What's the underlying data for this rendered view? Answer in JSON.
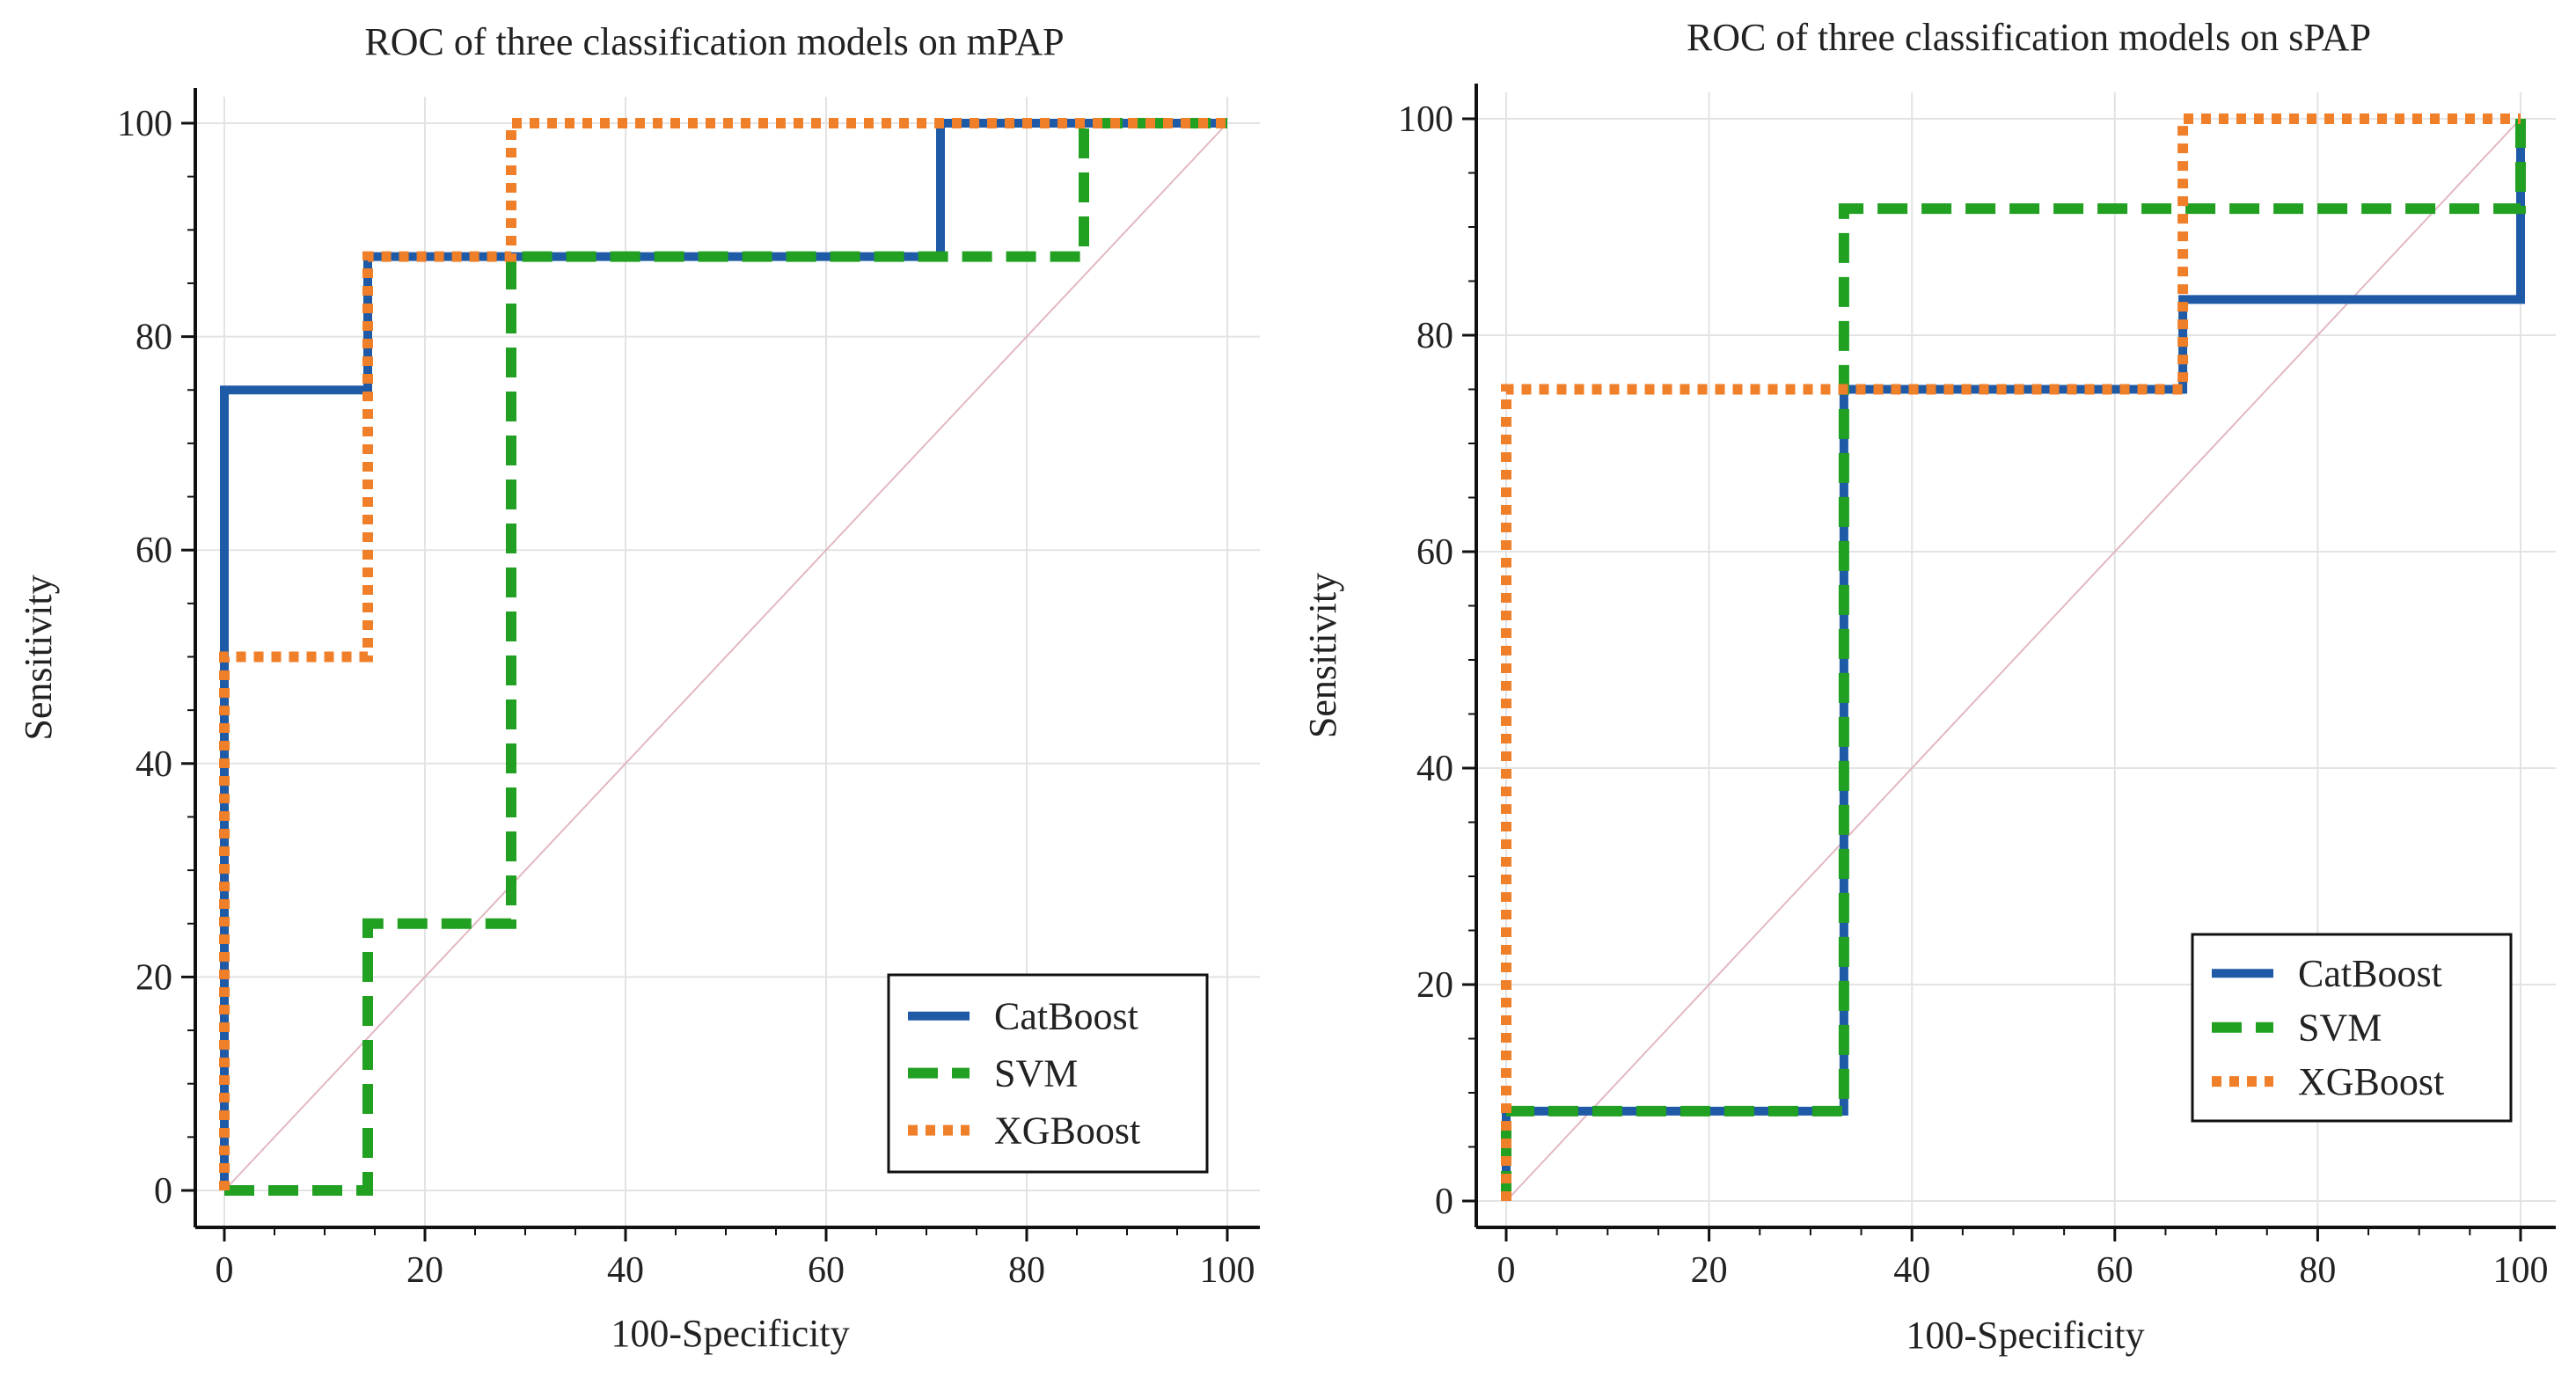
{
  "chart_data": [
    {
      "type": "line",
      "title": "ROC of three classification models on mPAP",
      "xlabel": "100-Specificity",
      "ylabel": "Sensitivity",
      "xlim": [
        0,
        100
      ],
      "ylim": [
        0,
        100
      ],
      "xticks": [
        "0",
        "20",
        "40",
        "60",
        "80",
        "100"
      ],
      "yticks": [
        "0",
        "20",
        "40",
        "60",
        "80",
        "100"
      ],
      "grid": true,
      "diagonal_reference": true,
      "legend_position": "bottom-right",
      "series": [
        {
          "name": "CatBoost",
          "color": "#1f5aa6",
          "style": "solid",
          "x": [
            0,
            0,
            14.3,
            14.3,
            71.4,
            71.4,
            100
          ],
          "y": [
            0,
            75,
            75,
            87.5,
            87.5,
            100,
            100
          ]
        },
        {
          "name": "SVM",
          "color": "#22a022",
          "style": "dashed",
          "x": [
            0,
            14.3,
            14.3,
            28.6,
            28.6,
            85.7,
            85.7,
            100
          ],
          "y": [
            0,
            0,
            25,
            25,
            87.5,
            87.5,
            100,
            100
          ]
        },
        {
          "name": "XGBoost",
          "color": "#f07f2a",
          "style": "dotted",
          "x": [
            0,
            0,
            14.3,
            14.3,
            28.6,
            28.6,
            100
          ],
          "y": [
            0,
            50,
            50,
            87.5,
            87.5,
            100,
            100
          ]
        }
      ]
    },
    {
      "type": "line",
      "title": "ROC of three classification models on sPAP",
      "xlabel": "100-Specificity",
      "ylabel": "Sensitivity",
      "xlim": [
        0,
        100
      ],
      "ylim": [
        0,
        100
      ],
      "xticks": [
        "0",
        "20",
        "40",
        "60",
        "80",
        "100"
      ],
      "yticks": [
        "0",
        "20",
        "40",
        "60",
        "80",
        "100"
      ],
      "grid": true,
      "diagonal_reference": true,
      "legend_position": "bottom-right",
      "series": [
        {
          "name": "CatBoost",
          "color": "#1f5aa6",
          "style": "solid",
          "x": [
            0,
            0,
            33.3,
            33.3,
            66.7,
            66.7,
            100,
            100
          ],
          "y": [
            0,
            8.3,
            8.3,
            75,
            75,
            83.3,
            83.3,
            100
          ]
        },
        {
          "name": "SVM",
          "color": "#22a022",
          "style": "dashed",
          "x": [
            0,
            0,
            33.3,
            33.3,
            100,
            100
          ],
          "y": [
            0,
            8.3,
            8.3,
            91.7,
            91.7,
            100
          ]
        },
        {
          "name": "XGBoost",
          "color": "#f07f2a",
          "style": "dotted",
          "x": [
            0,
            0,
            66.7,
            66.7,
            100
          ],
          "y": [
            0,
            75,
            75,
            100,
            100
          ]
        }
      ]
    }
  ]
}
